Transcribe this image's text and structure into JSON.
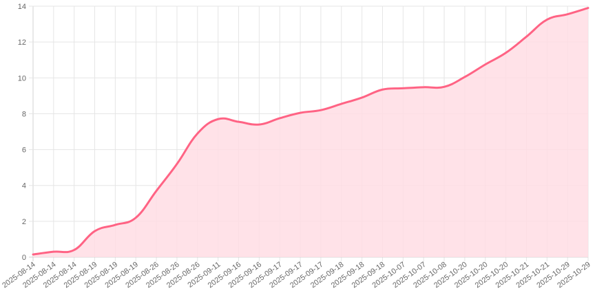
{
  "chart_data": {
    "type": "area",
    "title": "",
    "xlabel": "",
    "ylabel": "",
    "ylim": [
      0,
      14
    ],
    "yticks": [
      0,
      2,
      4,
      6,
      8,
      10,
      12,
      14
    ],
    "grid": true,
    "legend": "none",
    "colors": {
      "line": "#ff6384",
      "fill": "#ffdde4",
      "grid": "#e5e5e5"
    },
    "categories": [
      "2025-08-14",
      "2025-08-14",
      "2025-08-14",
      "2025-08-19",
      "2025-08-19",
      "2025-08-19",
      "2025-08-26",
      "2025-08-26",
      "2025-08-26",
      "2025-09-11",
      "2025-09-16",
      "2025-09-16",
      "2025-09-17",
      "2025-09-17",
      "2025-09-17",
      "2025-09-18",
      "2025-09-18",
      "2025-09-18",
      "2025-10-07",
      "2025-10-07",
      "2025-10-08",
      "2025-10-20",
      "2025-10-20",
      "2025-10-20",
      "2025-10-21",
      "2025-10-21",
      "2025-10-29",
      "2025-10-29"
    ],
    "series": [
      {
        "values": [
          0.15,
          0.3,
          0.4,
          1.45,
          1.8,
          2.2,
          3.7,
          5.2,
          6.9,
          7.7,
          7.55,
          7.4,
          7.75,
          8.05,
          8.2,
          8.55,
          8.9,
          9.35,
          9.42,
          9.48,
          9.5,
          10.05,
          10.75,
          11.4,
          12.3,
          13.25,
          13.55,
          13.9
        ]
      }
    ]
  }
}
